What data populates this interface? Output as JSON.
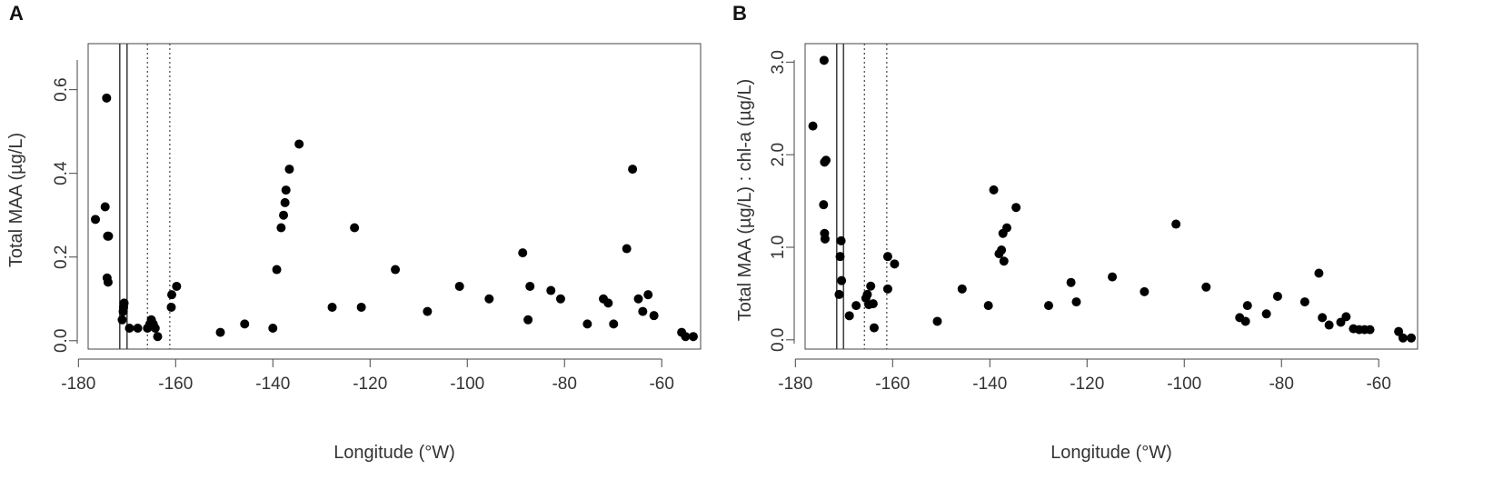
{
  "chart_data": [
    {
      "type": "scatter",
      "panel_label": "A",
      "xlabel": "Longitude (°W)",
      "ylabel": "Total MAA (µg/L)",
      "xlim": [
        -178,
        -52
      ],
      "ylim": [
        -0.02,
        0.71
      ],
      "x_ticks": [
        -180,
        -160,
        -140,
        -120,
        -100,
        -80,
        -60
      ],
      "x_tick_labels": [
        "-180",
        "-160",
        "-140",
        "-120",
        "-100",
        "-80",
        "-60"
      ],
      "y_ticks": [
        0.0,
        0.2,
        0.4,
        0.6
      ],
      "y_tick_labels": [
        "0.0",
        "0.2",
        "0.4",
        "0.6"
      ],
      "grid": false,
      "vlines_solid": [
        -171.5,
        -170.0
      ],
      "vlines_dotted": [
        -165.8,
        -161.2
      ],
      "colors": {
        "points": "#000000",
        "frame": "#444444",
        "vlines": "#444444"
      },
      "points": [
        {
          "x": -176.5,
          "y": 0.29
        },
        {
          "x": -174.5,
          "y": 0.32
        },
        {
          "x": -174.2,
          "y": 0.58
        },
        {
          "x": -174.0,
          "y": 0.25
        },
        {
          "x": -173.8,
          "y": 0.25
        },
        {
          "x": -174.1,
          "y": 0.15
        },
        {
          "x": -173.9,
          "y": 0.14
        },
        {
          "x": -171.0,
          "y": 0.05
        },
        {
          "x": -170.8,
          "y": 0.07
        },
        {
          "x": -170.7,
          "y": 0.08
        },
        {
          "x": -170.6,
          "y": 0.09
        },
        {
          "x": -169.5,
          "y": 0.03
        },
        {
          "x": -167.8,
          "y": 0.03
        },
        {
          "x": -165.8,
          "y": 0.03
        },
        {
          "x": -165.3,
          "y": 0.04
        },
        {
          "x": -165.0,
          "y": 0.05
        },
        {
          "x": -164.6,
          "y": 0.04
        },
        {
          "x": -164.2,
          "y": 0.03
        },
        {
          "x": -163.7,
          "y": 0.01
        },
        {
          "x": -160.9,
          "y": 0.08
        },
        {
          "x": -160.8,
          "y": 0.11
        },
        {
          "x": -159.8,
          "y": 0.13
        },
        {
          "x": -150.8,
          "y": 0.02
        },
        {
          "x": -145.8,
          "y": 0.04
        },
        {
          "x": -140.0,
          "y": 0.03
        },
        {
          "x": -139.2,
          "y": 0.17
        },
        {
          "x": -138.3,
          "y": 0.27
        },
        {
          "x": -137.8,
          "y": 0.3
        },
        {
          "x": -137.5,
          "y": 0.33
        },
        {
          "x": -137.3,
          "y": 0.36
        },
        {
          "x": -136.6,
          "y": 0.41
        },
        {
          "x": -134.6,
          "y": 0.47
        },
        {
          "x": -127.8,
          "y": 0.08
        },
        {
          "x": -123.2,
          "y": 0.27
        },
        {
          "x": -121.8,
          "y": 0.08
        },
        {
          "x": -114.8,
          "y": 0.17
        },
        {
          "x": -108.2,
          "y": 0.07
        },
        {
          "x": -101.6,
          "y": 0.13
        },
        {
          "x": -95.5,
          "y": 0.1
        },
        {
          "x": -88.6,
          "y": 0.21
        },
        {
          "x": -87.5,
          "y": 0.05
        },
        {
          "x": -87.1,
          "y": 0.13
        },
        {
          "x": -82.8,
          "y": 0.12
        },
        {
          "x": -80.8,
          "y": 0.1
        },
        {
          "x": -75.3,
          "y": 0.04
        },
        {
          "x": -72.0,
          "y": 0.1
        },
        {
          "x": -71.0,
          "y": 0.09
        },
        {
          "x": -69.9,
          "y": 0.04
        },
        {
          "x": -67.2,
          "y": 0.22
        },
        {
          "x": -66.0,
          "y": 0.41
        },
        {
          "x": -64.8,
          "y": 0.1
        },
        {
          "x": -63.9,
          "y": 0.07
        },
        {
          "x": -62.8,
          "y": 0.11
        },
        {
          "x": -61.6,
          "y": 0.06
        },
        {
          "x": -55.9,
          "y": 0.02
        },
        {
          "x": -55.1,
          "y": 0.01
        },
        {
          "x": -53.5,
          "y": 0.01
        }
      ]
    },
    {
      "type": "scatter",
      "panel_label": "B",
      "xlabel": "Longitude (°W)",
      "ylabel": "Total MAA (µg/L) : chl-a (µg/L)",
      "xlim": [
        -178,
        -52
      ],
      "ylim": [
        -0.1,
        3.2
      ],
      "x_ticks": [
        -180,
        -160,
        -140,
        -120,
        -100,
        -80,
        -60
      ],
      "x_tick_labels": [
        "-180",
        "-160",
        "-140",
        "-120",
        "-100",
        "-80",
        "-60"
      ],
      "y_ticks": [
        0.0,
        1.0,
        2.0,
        3.0
      ],
      "y_tick_labels": [
        "0.0",
        "1.0",
        "2.0",
        "3.0"
      ],
      "grid": false,
      "vlines_solid": [
        -171.5,
        -170.1
      ],
      "vlines_dotted": [
        -165.8,
        -161.2
      ],
      "colors": {
        "points": "#000000",
        "frame": "#444444",
        "vlines": "#444444"
      },
      "points": [
        {
          "x": -176.4,
          "y": 2.31
        },
        {
          "x": -174.1,
          "y": 3.02
        },
        {
          "x": -174.0,
          "y": 1.92
        },
        {
          "x": -173.7,
          "y": 1.94
        },
        {
          "x": -174.2,
          "y": 1.46
        },
        {
          "x": -174.0,
          "y": 1.15
        },
        {
          "x": -173.9,
          "y": 1.09
        },
        {
          "x": -170.6,
          "y": 1.07
        },
        {
          "x": -170.8,
          "y": 0.9
        },
        {
          "x": -170.5,
          "y": 0.64
        },
        {
          "x": -171.0,
          "y": 0.49
        },
        {
          "x": -168.9,
          "y": 0.26
        },
        {
          "x": -167.5,
          "y": 0.37
        },
        {
          "x": -165.5,
          "y": 0.45
        },
        {
          "x": -165.2,
          "y": 0.49
        },
        {
          "x": -164.9,
          "y": 0.38
        },
        {
          "x": -164.5,
          "y": 0.58
        },
        {
          "x": -164.0,
          "y": 0.39
        },
        {
          "x": -163.8,
          "y": 0.13
        },
        {
          "x": -161.0,
          "y": 0.9
        },
        {
          "x": -161.0,
          "y": 0.55
        },
        {
          "x": -159.6,
          "y": 0.82
        },
        {
          "x": -150.8,
          "y": 0.2
        },
        {
          "x": -145.7,
          "y": 0.55
        },
        {
          "x": -140.3,
          "y": 0.37
        },
        {
          "x": -139.2,
          "y": 1.62
        },
        {
          "x": -138.1,
          "y": 0.93
        },
        {
          "x": -137.6,
          "y": 0.97
        },
        {
          "x": -137.3,
          "y": 1.15
        },
        {
          "x": -137.1,
          "y": 0.85
        },
        {
          "x": -136.5,
          "y": 1.21
        },
        {
          "x": -134.6,
          "y": 1.43
        },
        {
          "x": -127.9,
          "y": 0.37
        },
        {
          "x": -123.3,
          "y": 0.62
        },
        {
          "x": -122.2,
          "y": 0.41
        },
        {
          "x": -114.8,
          "y": 0.68
        },
        {
          "x": -108.2,
          "y": 0.52
        },
        {
          "x": -101.7,
          "y": 1.25
        },
        {
          "x": -95.5,
          "y": 0.57
        },
        {
          "x": -88.6,
          "y": 0.24
        },
        {
          "x": -87.4,
          "y": 0.2
        },
        {
          "x": -87.0,
          "y": 0.37
        },
        {
          "x": -83.1,
          "y": 0.28
        },
        {
          "x": -80.8,
          "y": 0.47
        },
        {
          "x": -75.2,
          "y": 0.41
        },
        {
          "x": -72.3,
          "y": 0.72
        },
        {
          "x": -71.6,
          "y": 0.24
        },
        {
          "x": -70.2,
          "y": 0.16
        },
        {
          "x": -67.8,
          "y": 0.19
        },
        {
          "x": -66.7,
          "y": 0.25
        },
        {
          "x": -65.2,
          "y": 0.12
        },
        {
          "x": -64.0,
          "y": 0.11
        },
        {
          "x": -62.9,
          "y": 0.11
        },
        {
          "x": -61.8,
          "y": 0.11
        },
        {
          "x": -55.9,
          "y": 0.09
        },
        {
          "x": -55.0,
          "y": 0.02
        },
        {
          "x": -53.3,
          "y": 0.02
        }
      ]
    }
  ]
}
